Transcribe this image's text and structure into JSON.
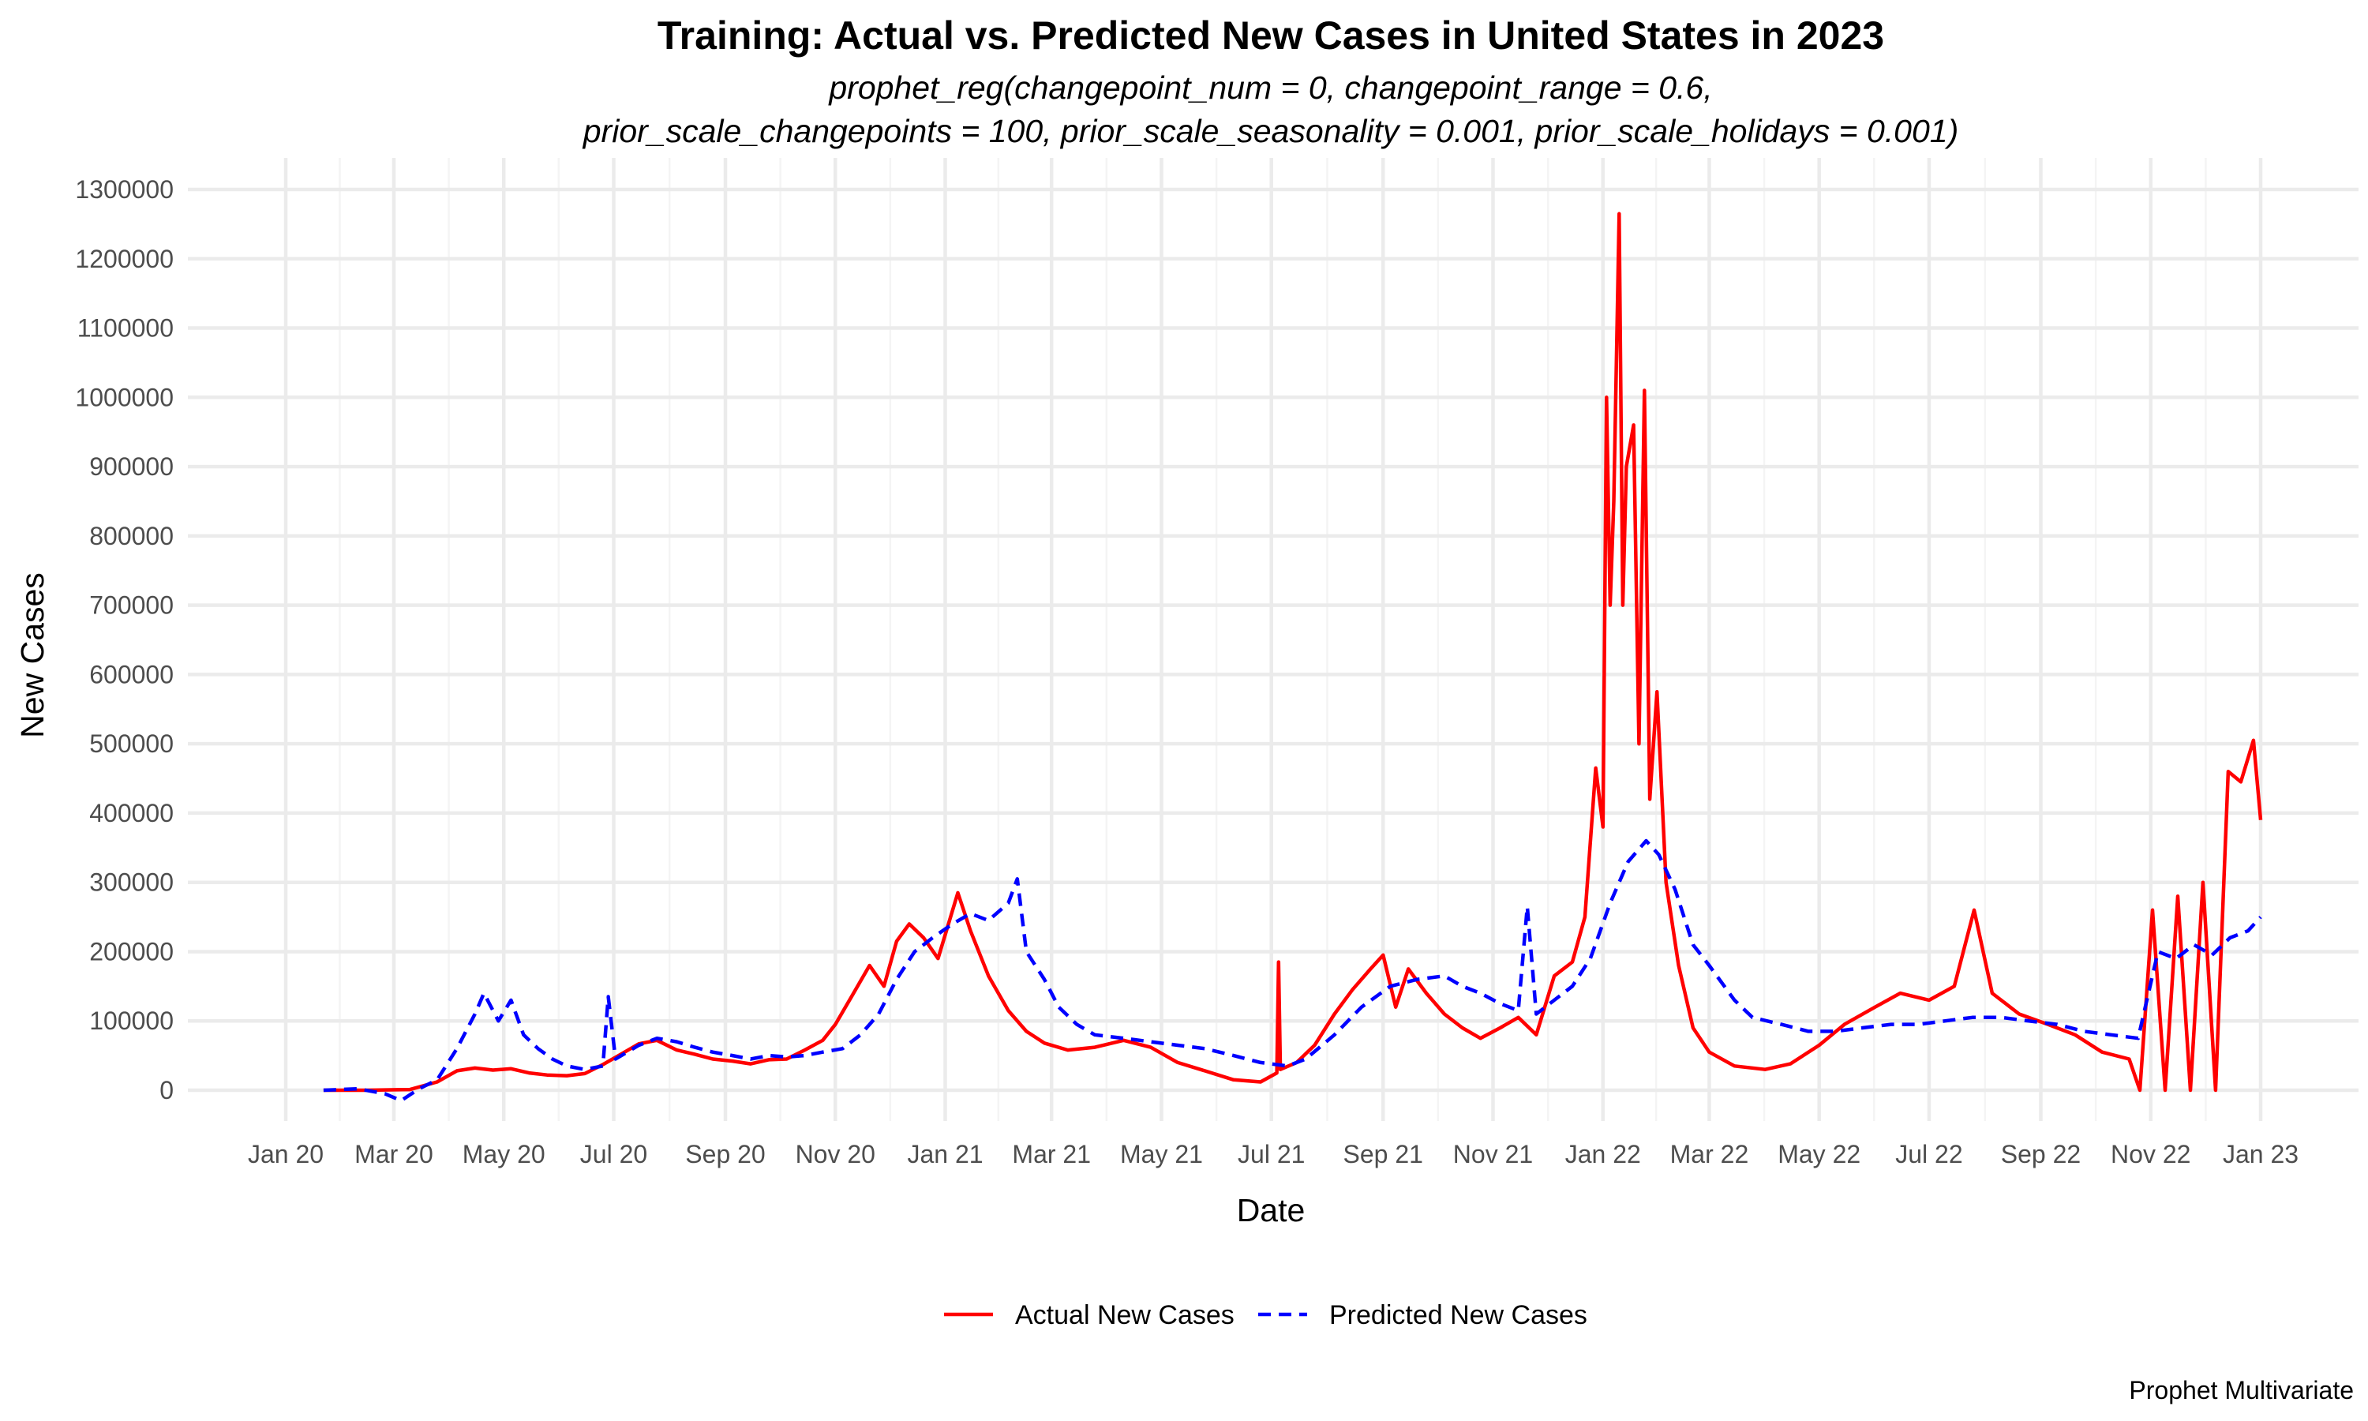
{
  "chart_data": {
    "type": "line",
    "title": "Training: Actual vs. Predicted New Cases in United States in 2023",
    "subtitle_lines": [
      "prophet_reg(changepoint_num = 0, changepoint_range = 0.6,",
      "prior_scale_changepoints = 100, prior_scale_seasonality = 0.001, prior_scale_holidays = 0.001)"
    ],
    "xlabel": "Date",
    "ylabel": "New Cases",
    "caption": "Prophet Multivariate",
    "legend_position": "bottom",
    "grid": true,
    "xlim": [
      "2020-01-01",
      "2023-01-01"
    ],
    "ylim": [
      0,
      1300000
    ],
    "x_ticks": [
      {
        "date": "2020-01-01",
        "label": "Jan 20"
      },
      {
        "date": "2020-03-01",
        "label": "Mar 20"
      },
      {
        "date": "2020-05-01",
        "label": "May 20"
      },
      {
        "date": "2020-07-01",
        "label": "Jul 20"
      },
      {
        "date": "2020-09-01",
        "label": "Sep 20"
      },
      {
        "date": "2020-11-01",
        "label": "Nov 20"
      },
      {
        "date": "2021-01-01",
        "label": "Jan 21"
      },
      {
        "date": "2021-03-01",
        "label": "Mar 21"
      },
      {
        "date": "2021-05-01",
        "label": "May 21"
      },
      {
        "date": "2021-07-01",
        "label": "Jul 21"
      },
      {
        "date": "2021-09-01",
        "label": "Sep 21"
      },
      {
        "date": "2021-11-01",
        "label": "Nov 21"
      },
      {
        "date": "2022-01-01",
        "label": "Jan 22"
      },
      {
        "date": "2022-03-01",
        "label": "Mar 22"
      },
      {
        "date": "2022-05-01",
        "label": "May 22"
      },
      {
        "date": "2022-07-01",
        "label": "Jul 22"
      },
      {
        "date": "2022-09-01",
        "label": "Sep 22"
      },
      {
        "date": "2022-11-01",
        "label": "Nov 22"
      },
      {
        "date": "2023-01-01",
        "label": "Jan 23"
      }
    ],
    "y_ticks": [
      {
        "value": 0,
        "label": "0"
      },
      {
        "value": 100000,
        "label": "100000"
      },
      {
        "value": 200000,
        "label": "200000"
      },
      {
        "value": 300000,
        "label": "300000"
      },
      {
        "value": 400000,
        "label": "400000"
      },
      {
        "value": 500000,
        "label": "500000"
      },
      {
        "value": 600000,
        "label": "600000"
      },
      {
        "value": 700000,
        "label": "700000"
      },
      {
        "value": 800000,
        "label": "800000"
      },
      {
        "value": 900000,
        "label": "900000"
      },
      {
        "value": 1000000,
        "label": "1000000"
      },
      {
        "value": 1100000,
        "label": "1100000"
      },
      {
        "value": 1200000,
        "label": "1200000"
      },
      {
        "value": 1300000,
        "label": "1300000"
      }
    ],
    "series": [
      {
        "name": "Actual New Cases",
        "color": "#ff0000",
        "dash": "solid",
        "points": [
          [
            "2020-01-22",
            0
          ],
          [
            "2020-02-15",
            0
          ],
          [
            "2020-03-10",
            1000
          ],
          [
            "2020-03-25",
            12000
          ],
          [
            "2020-04-05",
            28000
          ],
          [
            "2020-04-15",
            32000
          ],
          [
            "2020-04-25",
            29000
          ],
          [
            "2020-05-05",
            31000
          ],
          [
            "2020-05-15",
            25000
          ],
          [
            "2020-05-25",
            22000
          ],
          [
            "2020-06-05",
            21000
          ],
          [
            "2020-06-15",
            24000
          ],
          [
            "2020-06-25",
            37000
          ],
          [
            "2020-07-05",
            52000
          ],
          [
            "2020-07-15",
            67000
          ],
          [
            "2020-07-25",
            72000
          ],
          [
            "2020-08-05",
            58000
          ],
          [
            "2020-08-15",
            52000
          ],
          [
            "2020-08-25",
            45000
          ],
          [
            "2020-09-05",
            42000
          ],
          [
            "2020-09-15",
            38000
          ],
          [
            "2020-09-25",
            44000
          ],
          [
            "2020-10-05",
            45000
          ],
          [
            "2020-10-15",
            58000
          ],
          [
            "2020-10-25",
            72000
          ],
          [
            "2020-11-01",
            95000
          ],
          [
            "2020-11-10",
            135000
          ],
          [
            "2020-11-20",
            180000
          ],
          [
            "2020-11-28",
            150000
          ],
          [
            "2020-12-05",
            215000
          ],
          [
            "2020-12-12",
            240000
          ],
          [
            "2020-12-20",
            220000
          ],
          [
            "2020-12-28",
            190000
          ],
          [
            "2021-01-08",
            285000
          ],
          [
            "2021-01-15",
            230000
          ],
          [
            "2021-01-25",
            165000
          ],
          [
            "2021-02-05",
            115000
          ],
          [
            "2021-02-15",
            85000
          ],
          [
            "2021-02-25",
            68000
          ],
          [
            "2021-03-10",
            58000
          ],
          [
            "2021-03-25",
            62000
          ],
          [
            "2021-04-10",
            72000
          ],
          [
            "2021-04-25",
            62000
          ],
          [
            "2021-05-10",
            40000
          ],
          [
            "2021-05-25",
            28000
          ],
          [
            "2021-06-10",
            15000
          ],
          [
            "2021-06-25",
            12000
          ],
          [
            "2021-07-04",
            25000
          ],
          [
            "2021-07-05",
            185000
          ],
          [
            "2021-07-06",
            30000
          ],
          [
            "2021-07-15",
            40000
          ],
          [
            "2021-07-25",
            65000
          ],
          [
            "2021-08-05",
            110000
          ],
          [
            "2021-08-15",
            145000
          ],
          [
            "2021-08-25",
            175000
          ],
          [
            "2021-09-01",
            195000
          ],
          [
            "2021-09-08",
            120000
          ],
          [
            "2021-09-15",
            175000
          ],
          [
            "2021-09-25",
            140000
          ],
          [
            "2021-10-05",
            110000
          ],
          [
            "2021-10-15",
            90000
          ],
          [
            "2021-10-25",
            75000
          ],
          [
            "2021-11-05",
            90000
          ],
          [
            "2021-11-15",
            105000
          ],
          [
            "2021-11-25",
            80000
          ],
          [
            "2021-12-05",
            165000
          ],
          [
            "2021-12-15",
            185000
          ],
          [
            "2021-12-22",
            250000
          ],
          [
            "2021-12-28",
            465000
          ],
          [
            "2022-01-01",
            380000
          ],
          [
            "2022-01-03",
            1000000
          ],
          [
            "2022-01-05",
            700000
          ],
          [
            "2022-01-07",
            850000
          ],
          [
            "2022-01-10",
            1265000
          ],
          [
            "2022-01-12",
            700000
          ],
          [
            "2022-01-14",
            900000
          ],
          [
            "2022-01-18",
            960000
          ],
          [
            "2022-01-21",
            500000
          ],
          [
            "2022-01-24",
            1010000
          ],
          [
            "2022-01-27",
            420000
          ],
          [
            "2022-01-31",
            575000
          ],
          [
            "2022-02-05",
            300000
          ],
          [
            "2022-02-12",
            180000
          ],
          [
            "2022-02-20",
            90000
          ],
          [
            "2022-03-01",
            55000
          ],
          [
            "2022-03-15",
            35000
          ],
          [
            "2022-04-01",
            30000
          ],
          [
            "2022-04-15",
            38000
          ],
          [
            "2022-05-01",
            65000
          ],
          [
            "2022-05-15",
            95000
          ],
          [
            "2022-06-01",
            120000
          ],
          [
            "2022-06-15",
            140000
          ],
          [
            "2022-07-01",
            130000
          ],
          [
            "2022-07-15",
            150000
          ],
          [
            "2022-07-26",
            260000
          ],
          [
            "2022-08-05",
            140000
          ],
          [
            "2022-08-20",
            110000
          ],
          [
            "2022-09-05",
            95000
          ],
          [
            "2022-09-20",
            80000
          ],
          [
            "2022-10-05",
            55000
          ],
          [
            "2022-10-20",
            45000
          ],
          [
            "2022-10-26",
            0
          ],
          [
            "2022-11-02",
            260000
          ],
          [
            "2022-11-09",
            0
          ],
          [
            "2022-11-16",
            280000
          ],
          [
            "2022-11-23",
            0
          ],
          [
            "2022-11-30",
            300000
          ],
          [
            "2022-12-07",
            0
          ],
          [
            "2022-12-14",
            460000
          ],
          [
            "2022-12-21",
            445000
          ],
          [
            "2022-12-28",
            505000
          ],
          [
            "2023-01-01",
            390000
          ]
        ]
      },
      {
        "name": "Predicted New Cases",
        "color": "#0000ff",
        "dash": "dashed",
        "points": [
          [
            "2020-01-22",
            0
          ],
          [
            "2020-02-10",
            2000
          ],
          [
            "2020-02-25",
            -5000
          ],
          [
            "2020-03-05",
            -15000
          ],
          [
            "2020-03-15",
            2000
          ],
          [
            "2020-03-25",
            15000
          ],
          [
            "2020-04-05",
            60000
          ],
          [
            "2020-04-15",
            110000
          ],
          [
            "2020-04-20",
            140000
          ],
          [
            "2020-04-28",
            100000
          ],
          [
            "2020-05-05",
            130000
          ],
          [
            "2020-05-12",
            80000
          ],
          [
            "2020-05-20",
            60000
          ],
          [
            "2020-05-28",
            45000
          ],
          [
            "2020-06-05",
            35000
          ],
          [
            "2020-06-15",
            30000
          ],
          [
            "2020-06-25",
            35000
          ],
          [
            "2020-06-28",
            135000
          ],
          [
            "2020-07-02",
            45000
          ],
          [
            "2020-07-15",
            65000
          ],
          [
            "2020-07-25",
            75000
          ],
          [
            "2020-08-05",
            70000
          ],
          [
            "2020-08-15",
            62000
          ],
          [
            "2020-08-25",
            55000
          ],
          [
            "2020-09-05",
            50000
          ],
          [
            "2020-09-15",
            45000
          ],
          [
            "2020-09-25",
            50000
          ],
          [
            "2020-10-05",
            48000
          ],
          [
            "2020-10-15",
            50000
          ],
          [
            "2020-10-25",
            55000
          ],
          [
            "2020-11-05",
            60000
          ],
          [
            "2020-11-15",
            80000
          ],
          [
            "2020-11-25",
            110000
          ],
          [
            "2020-12-05",
            160000
          ],
          [
            "2020-12-15",
            200000
          ],
          [
            "2020-12-25",
            220000
          ],
          [
            "2021-01-05",
            240000
          ],
          [
            "2021-01-15",
            255000
          ],
          [
            "2021-01-25",
            245000
          ],
          [
            "2021-02-05",
            270000
          ],
          [
            "2021-02-10",
            305000
          ],
          [
            "2021-02-15",
            200000
          ],
          [
            "2021-02-25",
            160000
          ],
          [
            "2021-03-05",
            120000
          ],
          [
            "2021-03-15",
            95000
          ],
          [
            "2021-03-25",
            80000
          ],
          [
            "2021-04-10",
            75000
          ],
          [
            "2021-04-25",
            70000
          ],
          [
            "2021-05-10",
            65000
          ],
          [
            "2021-05-25",
            60000
          ],
          [
            "2021-06-10",
            50000
          ],
          [
            "2021-06-25",
            40000
          ],
          [
            "2021-07-10",
            35000
          ],
          [
            "2021-07-20",
            45000
          ],
          [
            "2021-08-05",
            80000
          ],
          [
            "2021-08-20",
            120000
          ],
          [
            "2021-09-05",
            150000
          ],
          [
            "2021-09-20",
            160000
          ],
          [
            "2021-10-05",
            165000
          ],
          [
            "2021-10-15",
            150000
          ],
          [
            "2021-10-25",
            140000
          ],
          [
            "2021-11-05",
            125000
          ],
          [
            "2021-11-15",
            115000
          ],
          [
            "2021-11-20",
            265000
          ],
          [
            "2021-11-25",
            110000
          ],
          [
            "2021-12-05",
            130000
          ],
          [
            "2021-12-15",
            150000
          ],
          [
            "2021-12-25",
            190000
          ],
          [
            "2022-01-05",
            270000
          ],
          [
            "2022-01-15",
            330000
          ],
          [
            "2022-01-25",
            360000
          ],
          [
            "2022-02-01",
            340000
          ],
          [
            "2022-02-10",
            290000
          ],
          [
            "2022-02-20",
            210000
          ],
          [
            "2022-03-01",
            180000
          ],
          [
            "2022-03-15",
            130000
          ],
          [
            "2022-03-25",
            105000
          ],
          [
            "2022-04-10",
            95000
          ],
          [
            "2022-04-25",
            85000
          ],
          [
            "2022-05-10",
            85000
          ],
          [
            "2022-05-25",
            90000
          ],
          [
            "2022-06-10",
            95000
          ],
          [
            "2022-06-25",
            95000
          ],
          [
            "2022-07-10",
            100000
          ],
          [
            "2022-07-25",
            105000
          ],
          [
            "2022-08-10",
            105000
          ],
          [
            "2022-08-25",
            100000
          ],
          [
            "2022-09-10",
            95000
          ],
          [
            "2022-09-25",
            85000
          ],
          [
            "2022-10-10",
            80000
          ],
          [
            "2022-10-25",
            75000
          ],
          [
            "2022-11-05",
            200000
          ],
          [
            "2022-11-15",
            190000
          ],
          [
            "2022-11-25",
            210000
          ],
          [
            "2022-12-05",
            195000
          ],
          [
            "2022-12-15",
            220000
          ],
          [
            "2022-12-25",
            230000
          ],
          [
            "2023-01-01",
            250000
          ]
        ]
      }
    ]
  }
}
